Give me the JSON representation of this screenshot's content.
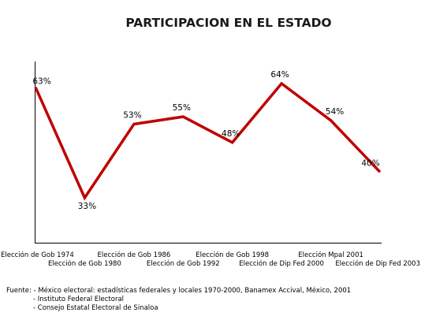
{
  "chart_data": {
    "type": "line",
    "title": "PARTICIPACION EN EL ESTADO",
    "categories": [
      "Elección de Gob 1974",
      "Elección de Gob 1980",
      "Elección de Gob 1986",
      "Elección de Gob 1992",
      "Elección de Gob 1998",
      "Elección de Dip Fed 2000",
      "Elección Mpal 2001",
      "Elección de Dip Fed 2003"
    ],
    "series": [
      {
        "values": [
          63,
          33,
          53,
          55,
          48,
          64,
          54,
          40
        ],
        "labels": [
          "63%",
          "33%",
          "53%",
          "55%",
          "48%",
          "64%",
          "54%",
          "40%"
        ],
        "color": "#c00000"
      }
    ],
    "ylim": [
      20,
      70
    ],
    "grid": false,
    "legend": "none"
  },
  "source": {
    "line1": "Fuente: - México electoral: estadísticas federales y locales 1970-2000, Banamex Accival, México, 2001",
    "line2": "- Instituto Federal Electoral",
    "line3": "- Consejo Estatal Electoral de Sinaloa"
  }
}
